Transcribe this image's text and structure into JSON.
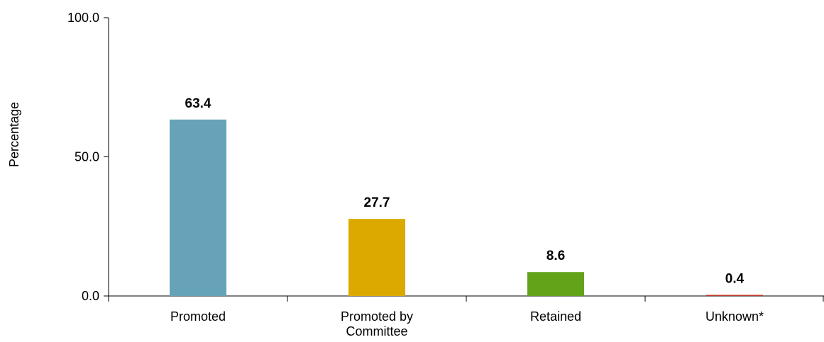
{
  "chart_data": {
    "type": "bar",
    "ylabel": "Percentage",
    "ylim": [
      0,
      100
    ],
    "yticks": [
      "0.0",
      "50.0",
      "100.0"
    ],
    "grid": false,
    "categories": [
      [
        "Promoted"
      ],
      [
        "Promoted by",
        "Committee"
      ],
      [
        "Retained"
      ],
      [
        "Unknown*"
      ]
    ],
    "values": [
      63.4,
      27.7,
      8.6,
      0.4
    ],
    "value_labels": [
      "63.4",
      "27.7",
      "8.6",
      "0.4"
    ],
    "colors": [
      "#67A3B8",
      "#DCA900",
      "#63A31A",
      "#C0392B"
    ]
  }
}
